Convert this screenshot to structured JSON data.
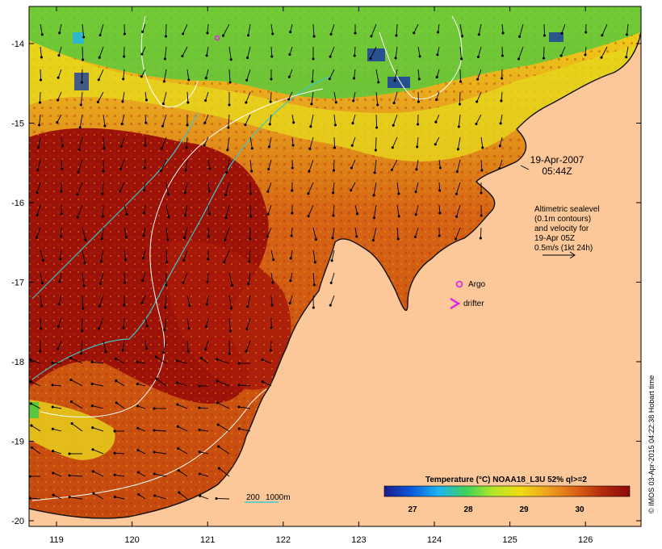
{
  "map": {
    "x_ticks": [
      "119",
      "120",
      "121",
      "122",
      "123",
      "124",
      "125",
      "126"
    ],
    "y_ticks": [
      "-14",
      "-15",
      "-16",
      "-17",
      "-18",
      "-19",
      "-20"
    ],
    "timestamp": {
      "date": "19-Apr-2007",
      "time": "05:44Z"
    },
    "altimetry_note": [
      "Altimetric sealevel",
      "(0.1m contours)",
      "and velocity for",
      "19-Apr 05Z",
      "0.5m/s (1kt 24h)"
    ],
    "legend": {
      "argo_label": "Argo",
      "drifter_label": "drifter",
      "argo_symbol": "o",
      "drifter_symbol": ">"
    },
    "bathymetry_label": {
      "shallow": "200",
      "deep": "1000m"
    },
    "colorbar": {
      "title": "Temperature (°C) NOAA18_L3U 52% ql>=2",
      "ticks": [
        "27",
        "28",
        "29",
        "30"
      ],
      "colors": [
        "#1a1a8c",
        "#0a5adc",
        "#1eb4f0",
        "#3cd25a",
        "#b4e628",
        "#f0dc14",
        "#f0a01e",
        "#dc6414",
        "#b42a0a",
        "#8c0a0a"
      ]
    },
    "credit": "© IMOS 03-Apr-2015 04:22:38 Hobart time",
    "colors": {
      "land": "#fcc89a",
      "contour_200m": "#3cc8c8",
      "contour_1000m": "#ffffff",
      "argo": "#e020e0"
    }
  }
}
